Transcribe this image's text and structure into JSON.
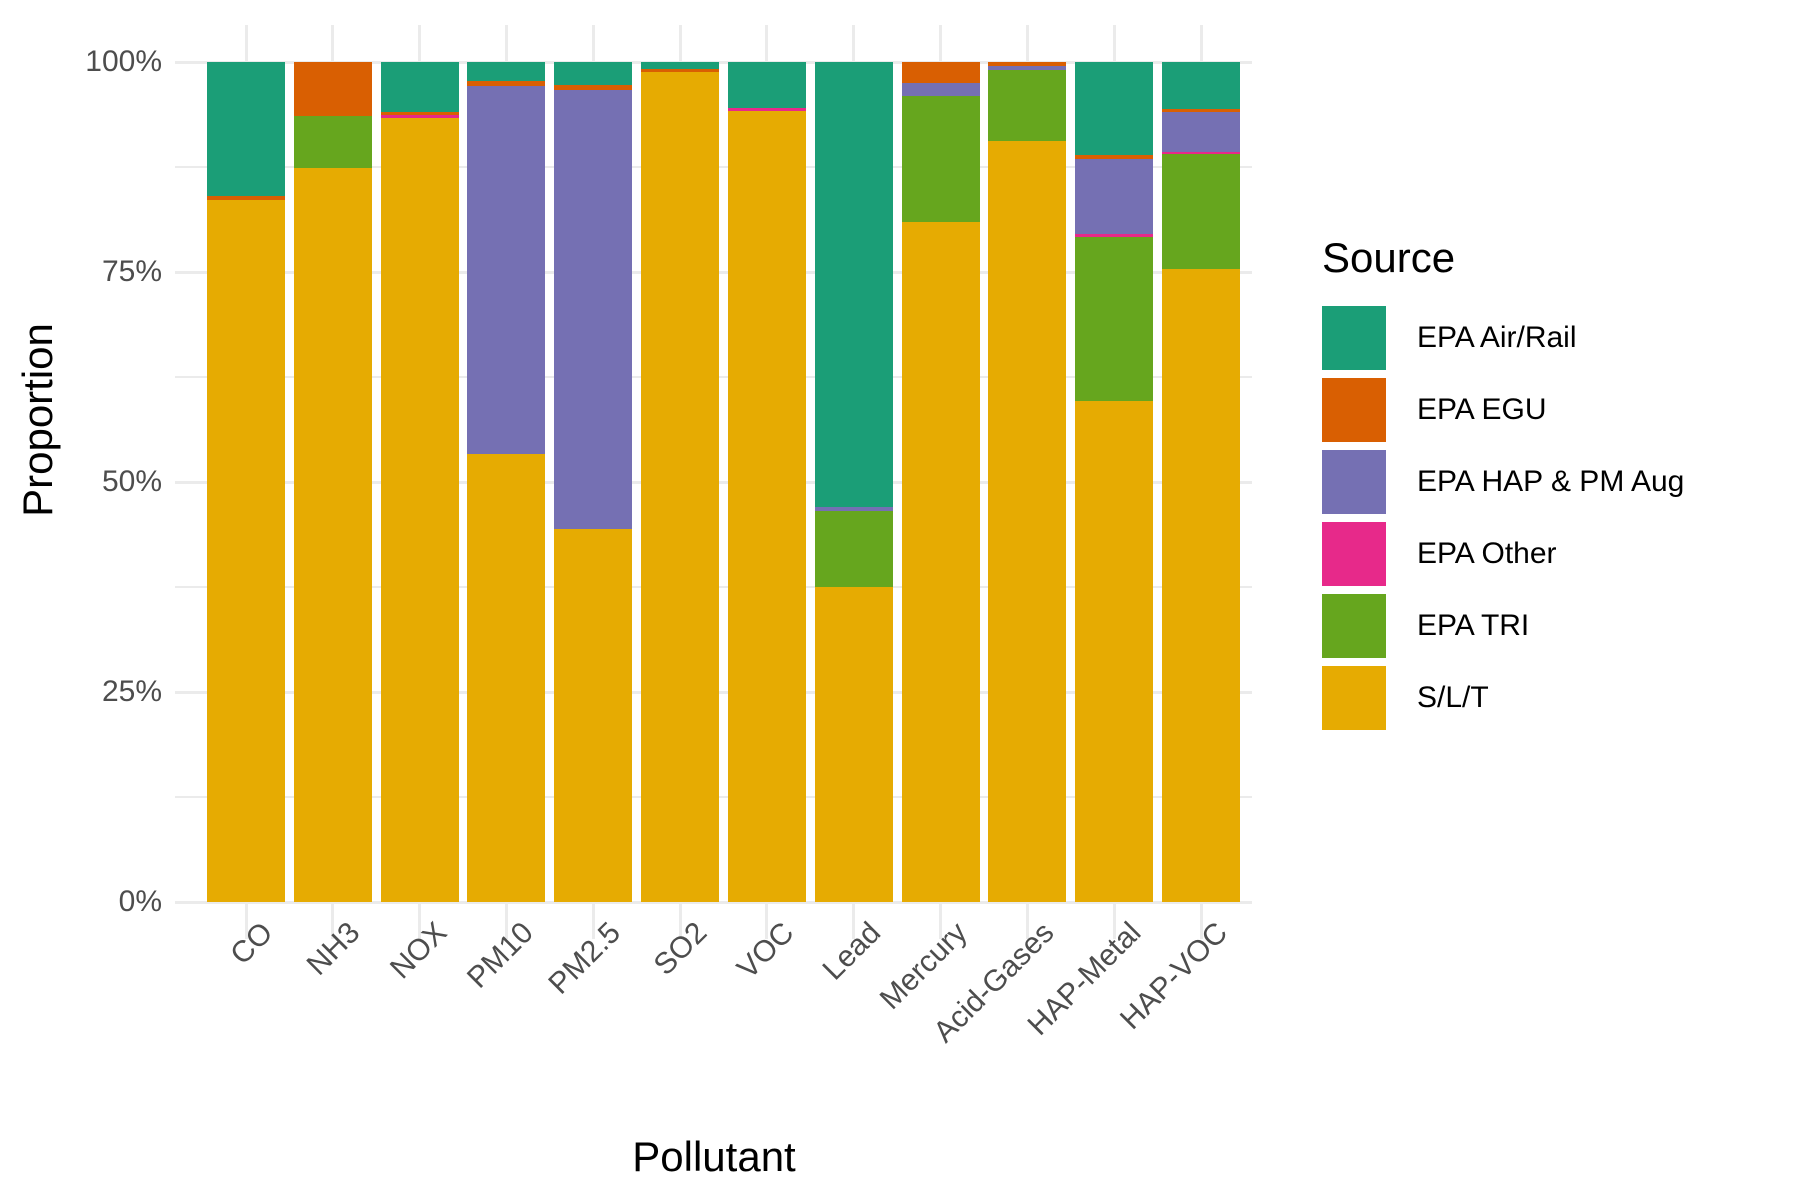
{
  "chart_data": {
    "type": "bar",
    "variant": "stacked-percent",
    "title": "",
    "xlabel": "Pollutant",
    "ylabel": "Proportion",
    "ylim": [
      0,
      100
    ],
    "grid": true,
    "grid_color": "#EBEBEB",
    "background": "#FFFFFF",
    "axis_text_color": "#4D4D4D",
    "y_tick_labels": [
      "0%",
      "25%",
      "50%",
      "75%",
      "100%"
    ],
    "y_major_percents": [
      0,
      25,
      50,
      75,
      100
    ],
    "y_minor_percents": [
      12.5,
      37.5,
      62.5,
      87.5
    ],
    "categories": [
      "CO",
      "NH3",
      "NOX",
      "PM10",
      "PM2.5",
      "SO2",
      "VOC",
      "Lead",
      "Mercury",
      "Acid-Gases",
      "HAP-Metal",
      "HAP-VOC"
    ],
    "legend_title": "Source",
    "legend_position": "right",
    "legend_order_top_to_bottom": [
      "EPA Air/Rail",
      "EPA EGU",
      "EPA HAP & PM Aug",
      "EPA Other",
      "EPA TRI",
      "S/L/T"
    ],
    "series": [
      {
        "name": "S/L/T",
        "color": "#E6AB02",
        "values": [
          83.6,
          87.4,
          93.3,
          53.3,
          44.4,
          98.8,
          94.2,
          37.5,
          81.0,
          90.6,
          59.6,
          75.4
        ]
      },
      {
        "name": "EPA TRI",
        "color": "#66A61E",
        "values": [
          0,
          6.2,
          0,
          0,
          0,
          0,
          0,
          9.0,
          15.0,
          8.4,
          19.6,
          13.6
        ]
      },
      {
        "name": "EPA Other",
        "color": "#E7298A",
        "values": [
          0,
          0,
          0.35,
          0,
          0,
          0,
          0.3,
          0,
          0,
          0,
          0.3,
          0.3
        ]
      },
      {
        "name": "EPA HAP & PM Aug",
        "color": "#7570B3",
        "values": [
          0,
          0,
          0,
          43.8,
          52.3,
          0,
          0,
          0.5,
          1.5,
          0.55,
          9.0,
          4.7
        ]
      },
      {
        "name": "EPA EGU",
        "color": "#D95F02",
        "values": [
          0.4,
          6.4,
          0.35,
          0.6,
          0.6,
          0.35,
          0,
          0,
          2.5,
          0.45,
          0.4,
          0.4
        ]
      },
      {
        "name": "EPA Air/Rail",
        "color": "#1B9E77",
        "values": [
          16.0,
          0,
          6.0,
          2.3,
          2.7,
          0.85,
          5.5,
          53.0,
          0,
          0,
          11.1,
          5.6
        ]
      }
    ]
  }
}
